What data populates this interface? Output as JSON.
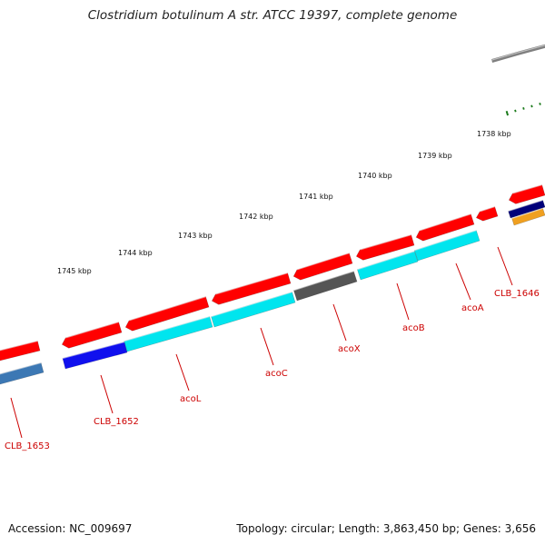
{
  "title": "Clostridium botulinum A str. ATCC 19397, complete genome",
  "accession": "Accession: NC_009697",
  "topology": "Topology: circular; Length: 3,863,450 bp; Genes: 3,656",
  "colors": {
    "backbone": "#7f7f7f",
    "tick": "#1a7a1a",
    "forward_gene": "#ff0000",
    "label": "#cc0000",
    "cyan_gene": "#00e5ee",
    "grey_gene": "#555555",
    "blue_gene": "#1010ee",
    "steel_gene": "#3c78b4",
    "navy_gene": "#00007a",
    "orange_gene": "#f0a020"
  },
  "scale_labels": [
    "1738 kbp",
    "1739 kbp",
    "1740 kbp",
    "1741 kbp",
    "1742 kbp",
    "1743 kbp",
    "1744 kbp",
    "1745 kbp"
  ],
  "gene_labels": [
    "CLB_1646",
    "acoA",
    "acoB",
    "acoX",
    "acoC",
    "acoL",
    "CLB_1652",
    "CLB_1653"
  ]
}
